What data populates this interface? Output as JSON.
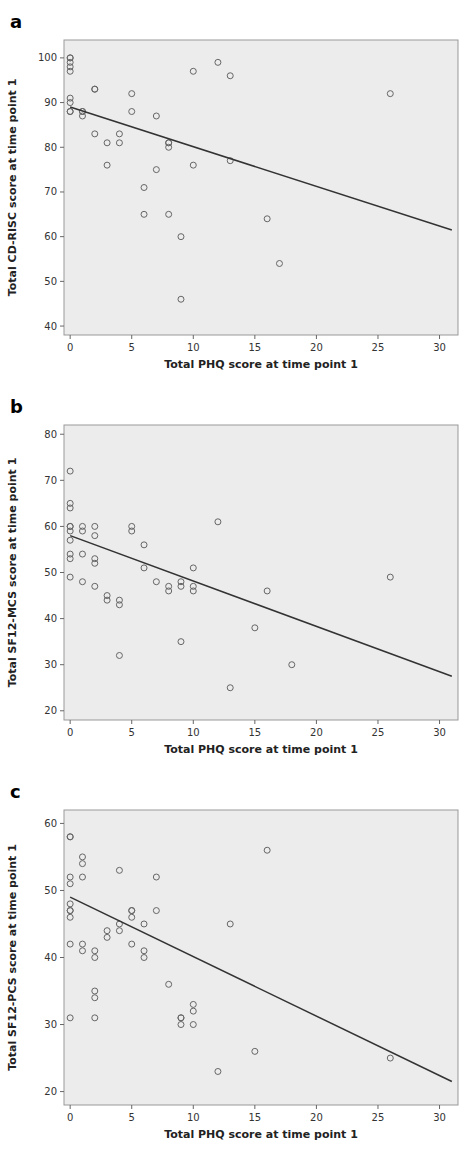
{
  "chart_data": [
    {
      "type": "scatter",
      "title": "a",
      "xlabel": "Total PHQ score at time point 1",
      "ylabel": "Total CD-RISC score at time point 1",
      "xlim": [
        -0.5,
        31.5
      ],
      "ylim": [
        38,
        104
      ],
      "xticks": [
        0,
        5,
        10,
        15,
        20,
        25,
        30
      ],
      "yticks": [
        40,
        50,
        60,
        70,
        80,
        90,
        100
      ],
      "grid": false,
      "series": [
        {
          "type": "scatter",
          "marker": "circle",
          "color": "#666666",
          "x": [
            0,
            0,
            0,
            0,
            0,
            0,
            0,
            0,
            0,
            1,
            1,
            1,
            2,
            2,
            2,
            3,
            3,
            4,
            4,
            5,
            5,
            6,
            6,
            7,
            7,
            8,
            8,
            8,
            8,
            9,
            9,
            10,
            10,
            12,
            13,
            13,
            16,
            17,
            26
          ],
          "values": [
            100,
            100,
            99,
            98,
            97,
            91,
            90,
            88,
            88,
            88,
            88,
            87,
            93,
            93,
            83,
            81,
            76,
            83,
            81,
            92,
            88,
            71,
            65,
            87,
            75,
            81,
            81,
            80,
            65,
            60,
            46,
            76,
            97,
            99,
            77,
            96,
            64,
            54,
            92
          ]
        },
        {
          "type": "line",
          "color": "#333333",
          "x": [
            0,
            31
          ],
          "values": [
            89.0,
            61.5
          ]
        }
      ]
    },
    {
      "type": "scatter",
      "title": "b",
      "xlabel": "Total PHQ score at time point 1",
      "ylabel": "Total SF12-MCS score at time point 1",
      "xlim": [
        -0.5,
        31.5
      ],
      "ylim": [
        18,
        82
      ],
      "xticks": [
        0,
        5,
        10,
        15,
        20,
        25,
        30
      ],
      "yticks": [
        20,
        30,
        40,
        50,
        60,
        70,
        80
      ],
      "grid": false,
      "series": [
        {
          "type": "scatter",
          "marker": "circle",
          "color": "#666666",
          "x": [
            0,
            0,
            0,
            0,
            0,
            0,
            0,
            0,
            0,
            0,
            1,
            1,
            1,
            1,
            2,
            2,
            2,
            2,
            2,
            3,
            3,
            4,
            4,
            4,
            5,
            5,
            6,
            6,
            7,
            8,
            8,
            9,
            9,
            9,
            10,
            10,
            10,
            12,
            13,
            15,
            16,
            18,
            26
          ],
          "values": [
            72,
            65,
            64,
            60,
            60,
            59,
            57,
            54,
            53,
            49,
            60,
            59,
            54,
            48,
            60,
            58,
            53,
            52,
            47,
            45,
            44,
            44,
            43,
            32,
            60,
            59,
            56,
            51,
            48,
            47,
            46,
            48,
            47,
            35,
            51,
            47,
            46,
            61,
            25,
            38,
            46,
            30,
            49
          ]
        },
        {
          "type": "line",
          "color": "#333333",
          "x": [
            0,
            31
          ],
          "values": [
            58.0,
            27.5
          ]
        }
      ]
    },
    {
      "type": "scatter",
      "title": "c",
      "xlabel": "Total PHQ score at time point 1",
      "ylabel": "Total SF12-PCS score at time point 1",
      "xlim": [
        -0.5,
        31.5
      ],
      "ylim": [
        18,
        62
      ],
      "xticks": [
        0,
        5,
        10,
        15,
        20,
        25,
        30
      ],
      "yticks": [
        20,
        30,
        40,
        50,
        60
      ],
      "grid": false,
      "series": [
        {
          "type": "scatter",
          "marker": "circle",
          "color": "#666666",
          "x": [
            0,
            0,
            0,
            0,
            0,
            0,
            0,
            0,
            0,
            0,
            1,
            1,
            1,
            1,
            1,
            2,
            2,
            2,
            2,
            2,
            3,
            3,
            4,
            4,
            4,
            5,
            5,
            5,
            5,
            6,
            6,
            6,
            7,
            7,
            8,
            9,
            9,
            9,
            10,
            10,
            10,
            12,
            13,
            15,
            16,
            26
          ],
          "values": [
            58,
            58,
            52,
            51,
            48,
            47,
            47,
            46,
            42,
            31,
            55,
            54,
            52,
            42,
            41,
            41,
            40,
            35,
            34,
            31,
            44,
            43,
            53,
            45,
            44,
            47,
            47,
            46,
            42,
            45,
            41,
            40,
            47,
            52,
            36,
            31,
            31,
            30,
            32,
            33,
            30,
            23,
            45,
            26,
            56,
            25
          ]
        },
        {
          "type": "line",
          "color": "#333333",
          "x": [
            0,
            31
          ],
          "values": [
            49.0,
            21.5
          ]
        }
      ]
    }
  ]
}
